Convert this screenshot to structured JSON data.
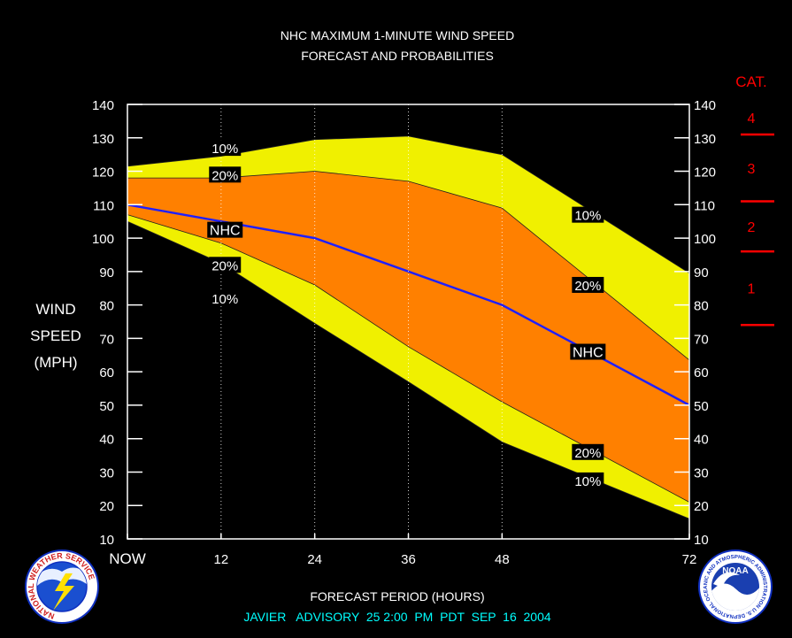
{
  "chart_data": {
    "type": "area",
    "title": "NHC MAXIMUM 1-MINUTE WIND SPEED",
    "subtitle": "FORECAST AND PROBABILITIES",
    "xlabel": "FORECAST PERIOD (HOURS)",
    "ylabel_lines": [
      "WIND",
      "SPEED",
      "(MPH)"
    ],
    "advisory": "JAVIER   ADVISORY  25 2:00  PM  PDT  SEP  16  2004",
    "xlim": [
      0,
      72
    ],
    "ylim": [
      10,
      140
    ],
    "x_ticks": [
      {
        "value": 0,
        "label": "NOW"
      },
      {
        "value": 12,
        "label": "12"
      },
      {
        "value": 24,
        "label": "24"
      },
      {
        "value": 36,
        "label": "36"
      },
      {
        "value": 48,
        "label": "48"
      },
      {
        "value": 72,
        "label": "72"
      }
    ],
    "y_ticks": [
      10,
      20,
      30,
      40,
      50,
      60,
      70,
      80,
      90,
      100,
      110,
      120,
      130,
      140
    ],
    "grid_x": [
      12,
      24,
      36,
      48
    ],
    "x": [
      0,
      12,
      24,
      36,
      48,
      72
    ],
    "series": [
      {
        "name": "10%",
        "role": "upper10",
        "values": [
          121.5,
          124.5,
          129.5,
          130.5,
          125,
          89.5
        ]
      },
      {
        "name": "20%",
        "role": "upper20",
        "values": [
          118,
          118,
          120,
          117,
          109,
          63.5
        ]
      },
      {
        "name": "NHC",
        "role": "nhc",
        "values": [
          110,
          105,
          100,
          90,
          80,
          50
        ]
      },
      {
        "name": "20%",
        "role": "lower20",
        "values": [
          107,
          98.5,
          86,
          67.5,
          51,
          21
        ]
      },
      {
        "name": "10%",
        "role": "lower10",
        "values": [
          105,
          92.5,
          74.5,
          57,
          39,
          16
        ]
      }
    ],
    "labels": [
      {
        "text": "10%",
        "x": 12.5,
        "y": 127
      },
      {
        "text": "20%",
        "x": 12.5,
        "y": 119
      },
      {
        "text": "NHC",
        "x": 12.5,
        "y": 102.5
      },
      {
        "text": "20%",
        "x": 12.5,
        "y": 92
      },
      {
        "text": "10%",
        "x": 12.5,
        "y": 82
      },
      {
        "text": "10%",
        "x": 59,
        "y": 107
      },
      {
        "text": "20%",
        "x": 59,
        "y": 86
      },
      {
        "text": "NHC",
        "x": 59,
        "y": 66
      },
      {
        "text": "20%",
        "x": 59,
        "y": 36
      },
      {
        "text": "10%",
        "x": 59,
        "y": 27.5
      }
    ],
    "categories": {
      "heading": "CAT.",
      "thresholds": [
        74,
        96,
        111,
        131
      ],
      "bands": [
        {
          "label": "1",
          "value": 85
        },
        {
          "label": "2",
          "value": 103.5
        },
        {
          "label": "3",
          "value": 121
        },
        {
          "label": "4",
          "value": 136
        }
      ]
    },
    "colors": {
      "outer_band": "#f0f000",
      "inner_band": "#ff8000",
      "nhc_line": "#2020ff",
      "category": "#ff0000",
      "advisory": "#00ffff",
      "text": "#ffffff",
      "background": "#000000"
    }
  },
  "logos": {
    "nws_text": "NATIONAL WEATHER SERVICE",
    "noaa_text": "NOAA",
    "noaa_ring_text": "NATIONAL OCEANIC AND ATMOSPHERIC ADMINISTRATION U.S. DEPARTMENT OF COMMERCE"
  }
}
